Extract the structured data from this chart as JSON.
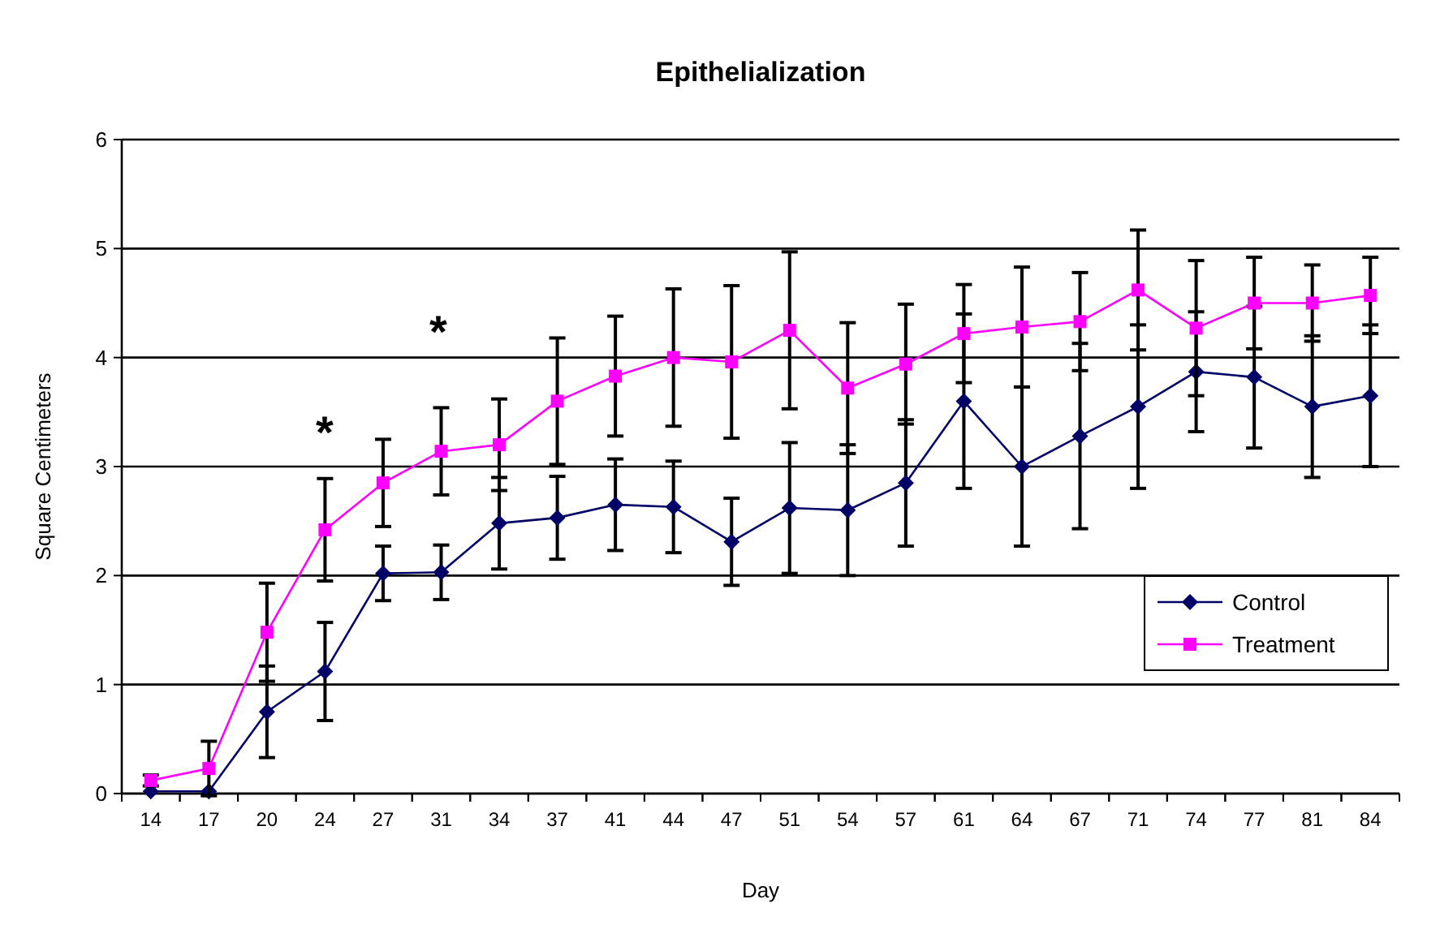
{
  "chart_data": {
    "type": "line",
    "title": "Epithelialization",
    "xlabel": "Day",
    "ylabel": "Square Centimeters",
    "categories": [
      "14",
      "17",
      "20",
      "24",
      "27",
      "31",
      "34",
      "37",
      "41",
      "44",
      "47",
      "51",
      "54",
      "57",
      "61",
      "64",
      "67",
      "71",
      "74",
      "77",
      "81",
      "84"
    ],
    "series": [
      {
        "name": "Control",
        "color": "#000066",
        "marker": "diamond",
        "values": [
          0.02,
          0.02,
          0.75,
          1.12,
          2.02,
          2.03,
          2.48,
          2.53,
          2.65,
          2.63,
          2.31,
          2.62,
          2.6,
          2.85,
          3.6,
          3.0,
          3.28,
          3.55,
          3.87,
          3.82,
          3.55,
          3.65
        ],
        "errors": [
          null,
          null,
          0.42,
          0.45,
          0.25,
          0.25,
          0.42,
          0.38,
          0.42,
          0.42,
          0.4,
          0.6,
          0.6,
          0.58,
          0.8,
          0.73,
          0.85,
          0.75,
          0.55,
          0.65,
          0.65,
          0.65
        ]
      },
      {
        "name": "Treatment",
        "color": "#ff00ff",
        "marker": "square",
        "values": [
          0.12,
          0.23,
          1.48,
          2.42,
          2.85,
          3.14,
          3.2,
          3.6,
          3.83,
          4.0,
          3.96,
          4.25,
          3.72,
          3.94,
          4.22,
          4.28,
          4.33,
          4.62,
          4.27,
          4.5,
          4.5,
          4.57
        ],
        "errors": [
          0.05,
          0.25,
          0.45,
          0.47,
          0.4,
          0.4,
          0.42,
          0.58,
          0.55,
          0.63,
          0.7,
          0.72,
          0.6,
          0.55,
          0.45,
          0.55,
          0.45,
          0.55,
          0.62,
          0.42,
          0.35,
          0.35
        ]
      }
    ],
    "annotations": [
      "*",
      "*"
    ],
    "ylim": [
      0,
      6
    ],
    "yticks": [
      0,
      1,
      2,
      3,
      4,
      5,
      6
    ],
    "grid": "y",
    "legend": "right"
  }
}
